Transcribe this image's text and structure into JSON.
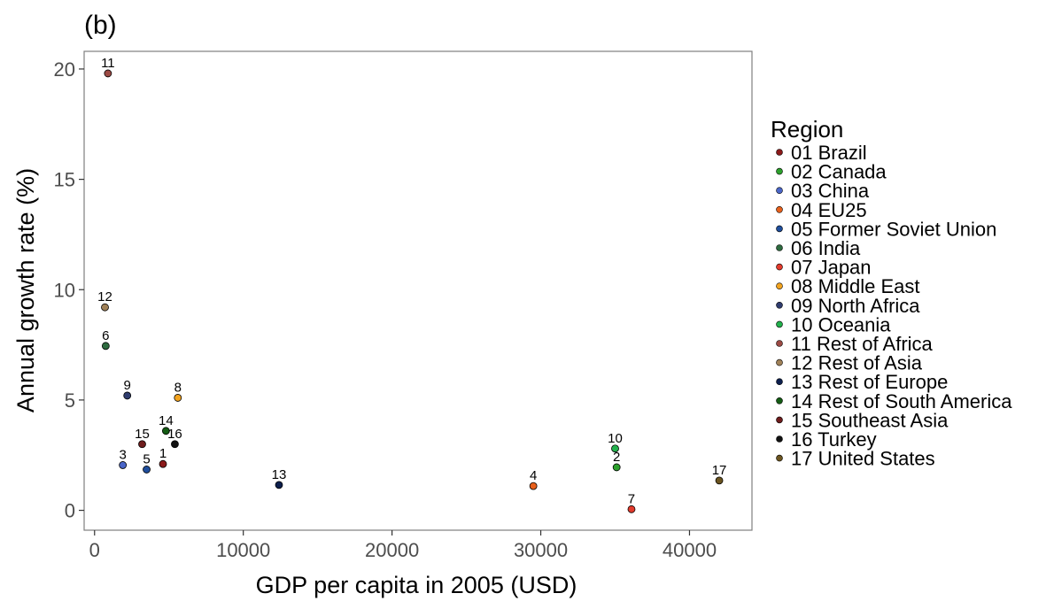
{
  "panel_label": "(b)",
  "chart_data": {
    "type": "scatter",
    "title": "",
    "xlabel": "GDP per capita in 2005 (USD)",
    "ylabel": "Annual growth rate (%)",
    "xlim": [
      -700,
      44200
    ],
    "ylim": [
      -0.9,
      20.8
    ],
    "xticks": [
      0,
      10000,
      20000,
      30000,
      40000
    ],
    "xtick_labels": [
      "0",
      "10000",
      "20000",
      "30000",
      "40000"
    ],
    "yticks": [
      0,
      5,
      10,
      15,
      20
    ],
    "ytick_labels": [
      "0",
      "5",
      "10",
      "15",
      "20"
    ],
    "grid": false,
    "legend_title": "Region",
    "legend_position": "right",
    "points": [
      {
        "label": "1",
        "region": "01 Brazil",
        "x": 4600,
        "y": 2.1,
        "color": "#8b1a1a"
      },
      {
        "label": "2",
        "region": "02 Canada",
        "x": 35100,
        "y": 1.95,
        "color": "#2ca02c"
      },
      {
        "label": "3",
        "region": "03 China",
        "x": 1900,
        "y": 2.05,
        "color": "#4a66c8"
      },
      {
        "label": "4",
        "region": "04 EU25",
        "x": 29500,
        "y": 1.1,
        "color": "#e8601c"
      },
      {
        "label": "5",
        "region": "05 Former Soviet Union",
        "x": 3500,
        "y": 1.85,
        "color": "#1f4e9c"
      },
      {
        "label": "6",
        "region": "06 India",
        "x": 750,
        "y": 7.45,
        "color": "#2e6b3f"
      },
      {
        "label": "7",
        "region": "07 Japan",
        "x": 36100,
        "y": 0.05,
        "color": "#e23a2c"
      },
      {
        "label": "8",
        "region": "08 Middle East",
        "x": 5600,
        "y": 5.1,
        "color": "#f2a31f"
      },
      {
        "label": "9",
        "region": "09 North Africa",
        "x": 2200,
        "y": 5.2,
        "color": "#2f3c6e"
      },
      {
        "label": "10",
        "region": "10 Oceania",
        "x": 35000,
        "y": 2.8,
        "color": "#22b14c"
      },
      {
        "label": "11",
        "region": "11 Rest of Africa",
        "x": 900,
        "y": 19.8,
        "color": "#9c4a44"
      },
      {
        "label": "12",
        "region": "12 Rest of Asia",
        "x": 700,
        "y": 9.2,
        "color": "#a08158"
      },
      {
        "label": "13",
        "region": "13 Rest of Europe",
        "x": 12400,
        "y": 1.15,
        "color": "#0d1f4d"
      },
      {
        "label": "14",
        "region": "14 Rest of South America",
        "x": 4800,
        "y": 3.6,
        "color": "#145c14"
      },
      {
        "label": "15",
        "region": "15 Southeast Asia",
        "x": 3200,
        "y": 3.0,
        "color": "#6e1c1c"
      },
      {
        "label": "16",
        "region": "16 Turkey",
        "x": 5400,
        "y": 3.0,
        "color": "#111111"
      },
      {
        "label": "17",
        "region": "17 United States",
        "x": 42000,
        "y": 1.35,
        "color": "#6b5420"
      }
    ]
  }
}
